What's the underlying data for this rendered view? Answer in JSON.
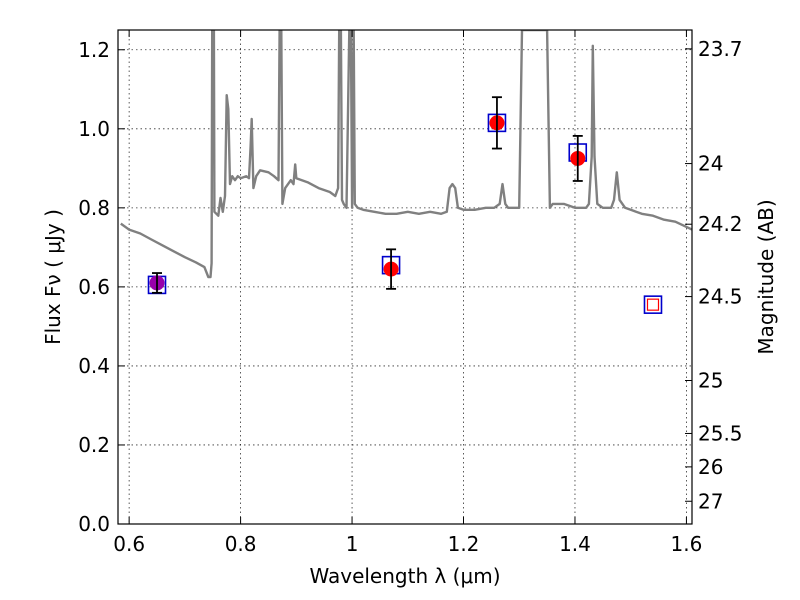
{
  "chart_data": {
    "type": "scatter",
    "xlabel": "Wavelength  λ (μm)",
    "ylabel": "Flux  Fν  ( μJy )",
    "y2label": "Magnitude (AB)",
    "xlim": [
      0.58,
      1.61
    ],
    "ylim": [
      0.0,
      1.25
    ],
    "grid": true,
    "x_ticks": [
      0.6,
      0.8,
      1,
      1.2,
      1.4,
      1.6
    ],
    "x_tick_labels": [
      "0.6",
      "0.8",
      "1",
      "1.2",
      "1.4",
      "1.6"
    ],
    "y_ticks": [
      0.0,
      0.2,
      0.4,
      0.6,
      0.8,
      1.0,
      1.2
    ],
    "y_tick_labels": [
      "0.0",
      "0.2",
      "0.4",
      "0.6",
      "0.8",
      "1.0",
      "1.2"
    ],
    "mag_ticks": [
      23.7,
      24,
      24.2,
      24.5,
      25,
      25.5,
      26,
      27
    ],
    "mag_tick_labels": [
      "23.7",
      "24",
      "24.2",
      "24.5",
      "25",
      "25.5",
      "26",
      "27"
    ],
    "colors": {
      "model": "#808080",
      "observed": "#ff0000",
      "observed_purple": "#9900aa",
      "model_box": "#0000cc",
      "errorbar": "#000000"
    },
    "observed_points": [
      {
        "x": 0.65,
        "y": 0.61,
        "err": 0.025,
        "color_key": "observed_purple"
      },
      {
        "x": 1.07,
        "y": 0.645,
        "err": 0.05,
        "color_key": "observed"
      },
      {
        "x": 1.26,
        "y": 1.015,
        "err": 0.065,
        "color_key": "observed"
      },
      {
        "x": 1.405,
        "y": 0.925,
        "err": 0.057,
        "color_key": "observed"
      }
    ],
    "model_photometry": [
      {
        "x": 0.65,
        "y": 0.605
      },
      {
        "x": 1.07,
        "y": 0.655
      },
      {
        "x": 1.26,
        "y": 1.015
      },
      {
        "x": 1.405,
        "y": 0.94
      },
      {
        "x": 1.54,
        "y": 0.555
      }
    ],
    "model_spectrum": [
      [
        0.585,
        0.76
      ],
      [
        0.6,
        0.745
      ],
      [
        0.62,
        0.735
      ],
      [
        0.64,
        0.72
      ],
      [
        0.66,
        0.705
      ],
      [
        0.68,
        0.69
      ],
      [
        0.7,
        0.675
      ],
      [
        0.72,
        0.662
      ],
      [
        0.735,
        0.65
      ],
      [
        0.742,
        0.625
      ],
      [
        0.746,
        0.625
      ],
      [
        0.748,
        0.66
      ],
      [
        0.749,
        1.25
      ],
      [
        0.752,
        1.25
      ],
      [
        0.753,
        0.79
      ],
      [
        0.76,
        0.78
      ],
      [
        0.764,
        0.825
      ],
      [
        0.768,
        0.79
      ],
      [
        0.772,
        0.83
      ],
      [
        0.775,
        1.085
      ],
      [
        0.778,
        1.05
      ],
      [
        0.781,
        0.86
      ],
      [
        0.785,
        0.88
      ],
      [
        0.79,
        0.87
      ],
      [
        0.795,
        0.88
      ],
      [
        0.8,
        0.875
      ],
      [
        0.81,
        0.88
      ],
      [
        0.815,
        0.875
      ],
      [
        0.818,
        0.955
      ],
      [
        0.82,
        1.025
      ],
      [
        0.823,
        0.85
      ],
      [
        0.828,
        0.88
      ],
      [
        0.835,
        0.895
      ],
      [
        0.85,
        0.89
      ],
      [
        0.86,
        0.88
      ],
      [
        0.868,
        0.87
      ],
      [
        0.87,
        1.25
      ],
      [
        0.873,
        1.25
      ],
      [
        0.875,
        0.81
      ],
      [
        0.88,
        0.85
      ],
      [
        0.89,
        0.87
      ],
      [
        0.895,
        0.86
      ],
      [
        0.898,
        0.91
      ],
      [
        0.9,
        0.875
      ],
      [
        0.91,
        0.87
      ],
      [
        0.92,
        0.865
      ],
      [
        0.94,
        0.85
      ],
      [
        0.96,
        0.84
      ],
      [
        0.97,
        0.83
      ],
      [
        0.975,
        0.85
      ],
      [
        0.977,
        1.25
      ],
      [
        0.98,
        1.25
      ],
      [
        0.982,
        0.82
      ],
      [
        0.985,
        0.81
      ],
      [
        0.99,
        0.8
      ],
      [
        0.995,
        1.25
      ],
      [
        0.998,
        1.25
      ],
      [
        1.0,
        0.8
      ],
      [
        1.003,
        1.25
      ],
      [
        1.005,
        0.81
      ],
      [
        1.01,
        0.8
      ],
      [
        1.02,
        0.795
      ],
      [
        1.04,
        0.79
      ],
      [
        1.06,
        0.785
      ],
      [
        1.08,
        0.785
      ],
      [
        1.1,
        0.79
      ],
      [
        1.12,
        0.785
      ],
      [
        1.14,
        0.79
      ],
      [
        1.16,
        0.785
      ],
      [
        1.17,
        0.79
      ],
      [
        1.175,
        0.85
      ],
      [
        1.18,
        0.86
      ],
      [
        1.185,
        0.85
      ],
      [
        1.19,
        0.8
      ],
      [
        1.2,
        0.795
      ],
      [
        1.22,
        0.795
      ],
      [
        1.24,
        0.8
      ],
      [
        1.255,
        0.8
      ],
      [
        1.265,
        0.81
      ],
      [
        1.27,
        0.86
      ],
      [
        1.275,
        0.81
      ],
      [
        1.28,
        0.8
      ],
      [
        1.29,
        0.8
      ],
      [
        1.295,
        0.8
      ],
      [
        1.3,
        0.8
      ],
      [
        1.305,
        1.25
      ],
      [
        1.35,
        1.25
      ],
      [
        1.355,
        0.8
      ],
      [
        1.36,
        0.81
      ],
      [
        1.38,
        0.81
      ],
      [
        1.4,
        0.8
      ],
      [
        1.42,
        0.8
      ],
      [
        1.425,
        0.81
      ],
      [
        1.43,
        0.93
      ],
      [
        1.432,
        1.21
      ],
      [
        1.435,
        0.93
      ],
      [
        1.44,
        0.81
      ],
      [
        1.45,
        0.8
      ],
      [
        1.46,
        0.8
      ],
      [
        1.465,
        0.8
      ],
      [
        1.47,
        0.82
      ],
      [
        1.475,
        0.89
      ],
      [
        1.48,
        0.82
      ],
      [
        1.49,
        0.8
      ],
      [
        1.5,
        0.795
      ],
      [
        1.52,
        0.785
      ],
      [
        1.54,
        0.78
      ],
      [
        1.56,
        0.77
      ],
      [
        1.58,
        0.765
      ],
      [
        1.595,
        0.755
      ],
      [
        1.61,
        0.745
      ]
    ]
  }
}
